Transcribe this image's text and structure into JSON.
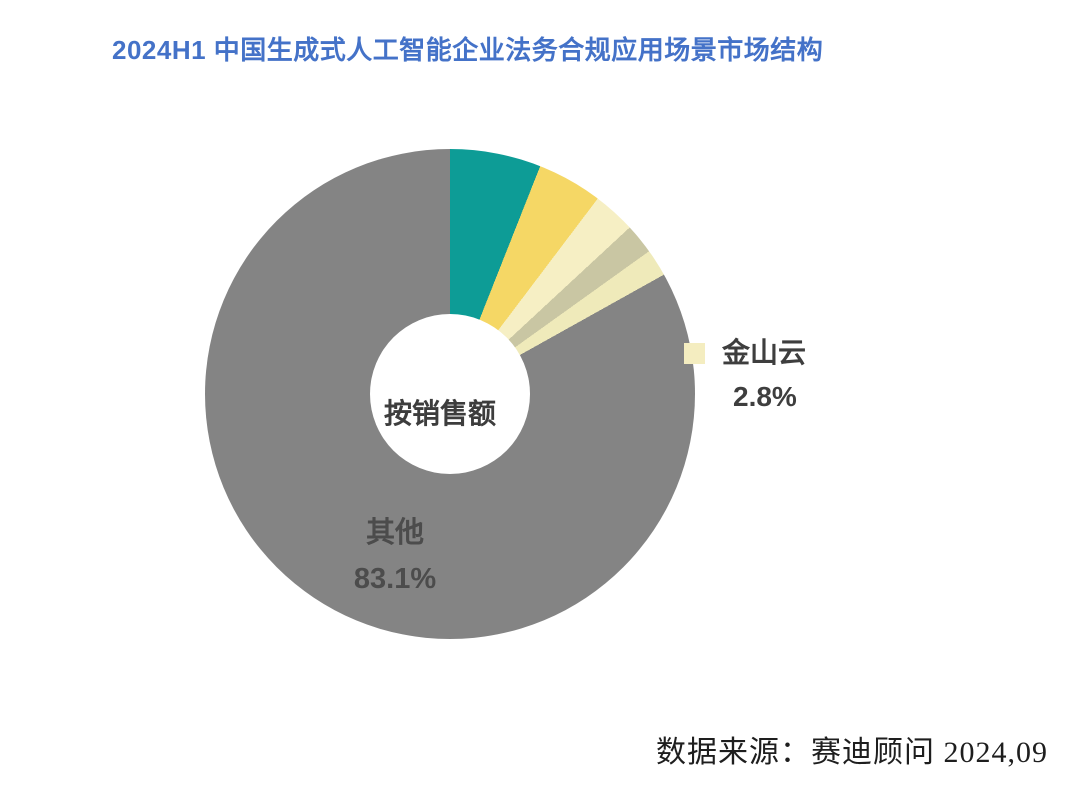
{
  "title": "2024H1 中国生成式人工智能企业法务合规应用场景市场结构",
  "title_color": "#4472c8",
  "background": "#ffffff",
  "chart": {
    "center_label": "按销售额",
    "jinshan_label": {
      "name": "金山云",
      "value": "2.8%",
      "swatch_color": "#f4edc0"
    },
    "other_label": {
      "name": "其他",
      "value": "83.1%"
    }
  },
  "source": "数据来源：赛迪顾问  2024,09",
  "chart_data": {
    "type": "pie",
    "subtype": "donut",
    "title": "2024H1 中国生成式人工智能企业法务合规应用场景市场结构",
    "center_label": "按销售额",
    "unit": "%",
    "start_angle": "12-oclock",
    "direction": "clockwise",
    "legend_position": "labels-beside-slices",
    "segments": [
      {
        "name": "",
        "labeled": false,
        "value": 6.0,
        "color": "#0d9c96"
      },
      {
        "name": "",
        "labeled": false,
        "value": 4.3,
        "color": "#f5d765"
      },
      {
        "name": "金山云",
        "labeled": true,
        "value": 2.8,
        "color": "#f6efc4"
      },
      {
        "name": "",
        "labeled": false,
        "value": 2.0,
        "color": "#c9c6a3"
      },
      {
        "name": "",
        "labeled": false,
        "value": 1.8,
        "color": "#efeaba"
      },
      {
        "name": "其他",
        "labeled": true,
        "value": 83.1,
        "color": "#848484"
      }
    ],
    "source": "数据来源：赛迪顾问  2024,09"
  }
}
